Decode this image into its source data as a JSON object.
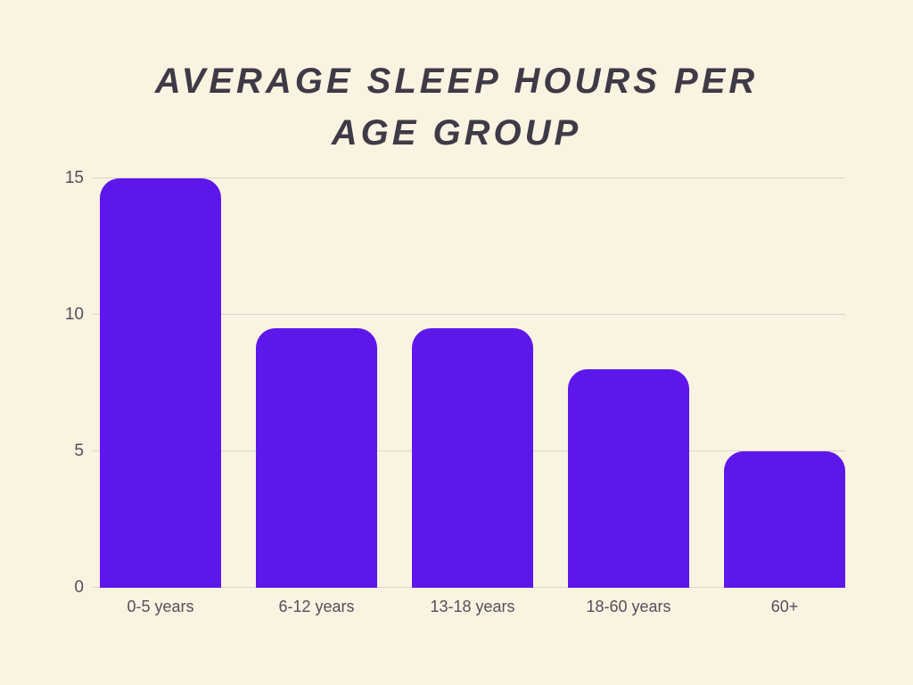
{
  "title": "AVERAGE SLEEP HOURS PER AGE GROUP",
  "colors": {
    "background": "#FBF3E1",
    "bar": "#5E17EB",
    "title_text": "#3F3A46",
    "axis_text": "#534F5A",
    "gridline": "#DBD5CC"
  },
  "chart_data": {
    "type": "bar",
    "categories": [
      "0-5 years",
      "6-12 years",
      "13-18 years",
      "18-60 years",
      "60+"
    ],
    "values": [
      15,
      9.5,
      9.5,
      8,
      5
    ],
    "title": "AVERAGE SLEEP HOURS PER AGE GROUP",
    "xlabel": "",
    "ylabel": "",
    "ylim": [
      0,
      15
    ],
    "yticks": [
      0,
      5,
      10,
      15
    ],
    "grid": true,
    "legend": false
  }
}
